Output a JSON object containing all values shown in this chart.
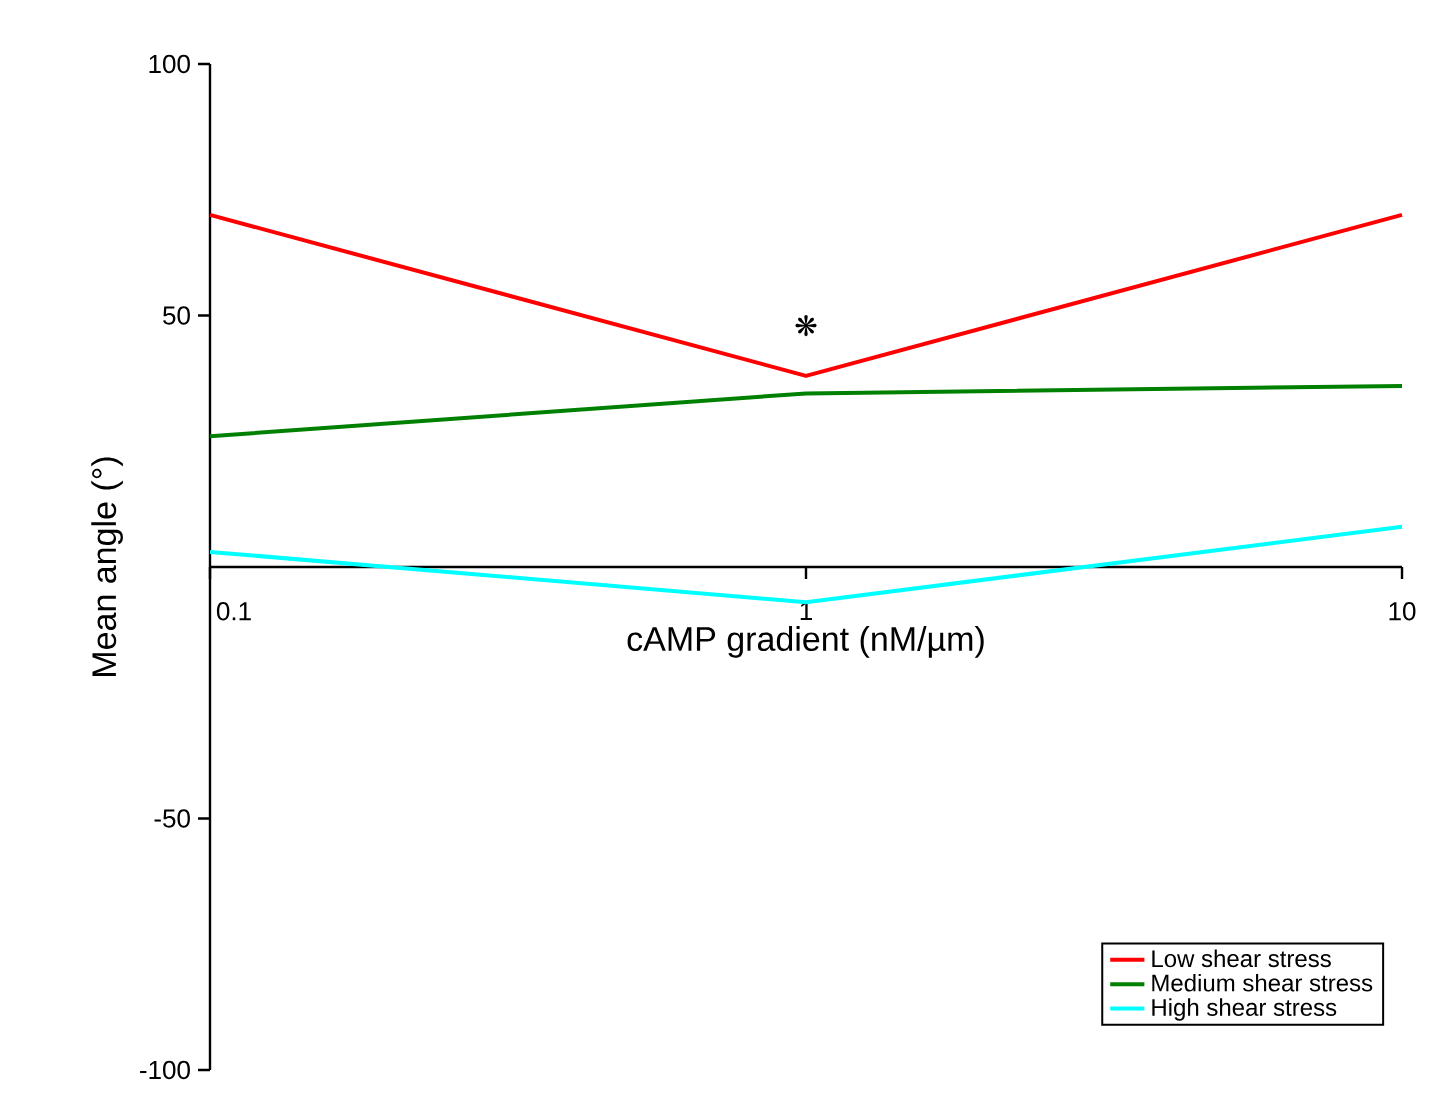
{
  "chart_data": {
    "type": "line",
    "xlabel": "cAMP gradient (nM/µm)",
    "ylabel": "Mean angle (°)",
    "x": [
      0.1,
      1,
      10
    ],
    "series": [
      {
        "name": "Low shear stress",
        "color": "#ff0000",
        "values": [
          70,
          38,
          70
        ]
      },
      {
        "name": "Medium shear stress",
        "color": "#008000",
        "values": [
          26,
          34.5,
          36
        ]
      },
      {
        "name": "High shear stress",
        "color": "#00ffff",
        "values": [
          3,
          -7,
          8
        ]
      }
    ],
    "annotations": [
      "❋"
    ],
    "log": "x",
    "xlim": [
      0.1,
      10
    ],
    "xticks": [
      0.1,
      1,
      10
    ],
    "ylim": [
      -100,
      100
    ],
    "yticks": [
      -100,
      -50,
      50,
      100
    ],
    "grid": false,
    "legend": "bottom right",
    "marker": "none",
    "line_style": "solid"
  }
}
